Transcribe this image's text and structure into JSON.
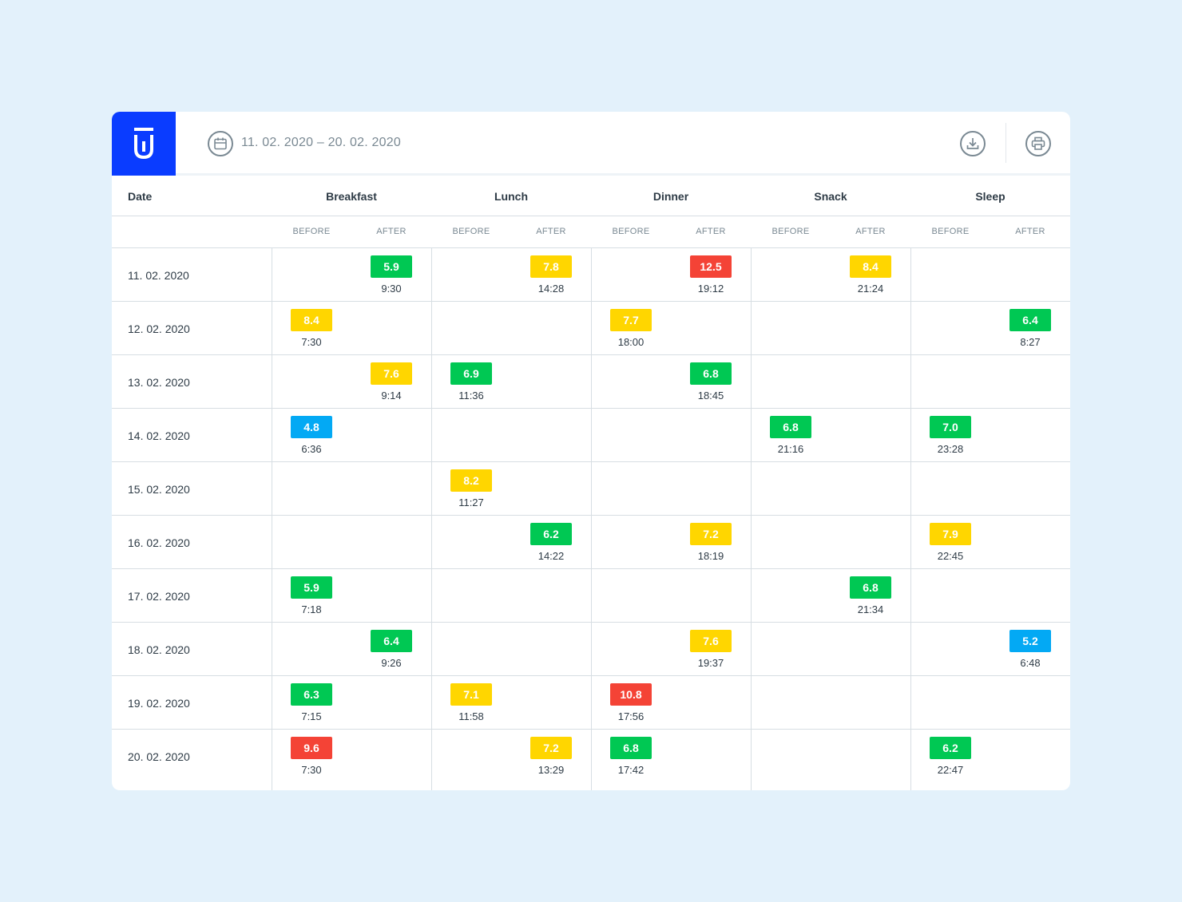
{
  "header": {
    "date_range": "11. 02. 2020 – 20. 02. 2020"
  },
  "colors": {
    "brand": "#0a3cff",
    "green": "#00c853",
    "yellow": "#ffd600",
    "red": "#f44336",
    "blue": "#03a9f4",
    "background": "#e3f1fb"
  },
  "icons": {
    "logo": "brand-logo-icon",
    "calendar": "calendar-icon",
    "download": "download-icon",
    "print": "printer-icon"
  },
  "table": {
    "date_header": "Date",
    "meals": [
      "Breakfast",
      "Lunch",
      "Dinner",
      "Snack",
      "Sleep"
    ],
    "sub_headers": [
      "BEFORE",
      "AFTER"
    ],
    "rows": [
      {
        "date": "11. 02. 2020",
        "entries": [
          {
            "meal": 0,
            "slot": 1,
            "value": "5.9",
            "time": "9:30",
            "level": "green"
          },
          {
            "meal": 1,
            "slot": 1,
            "value": "7.8",
            "time": "14:28",
            "level": "yellow"
          },
          {
            "meal": 2,
            "slot": 1,
            "value": "12.5",
            "time": "19:12",
            "level": "red"
          },
          {
            "meal": 3,
            "slot": 1,
            "value": "8.4",
            "time": "21:24",
            "level": "yellow"
          }
        ]
      },
      {
        "date": "12. 02. 2020",
        "entries": [
          {
            "meal": 0,
            "slot": 0,
            "value": "8.4",
            "time": "7:30",
            "level": "yellow"
          },
          {
            "meal": 2,
            "slot": 0,
            "value": "7.7",
            "time": "18:00",
            "level": "yellow"
          },
          {
            "meal": 4,
            "slot": 1,
            "value": "6.4",
            "time": "8:27",
            "level": "green"
          }
        ]
      },
      {
        "date": "13. 02. 2020",
        "entries": [
          {
            "meal": 0,
            "slot": 1,
            "value": "7.6",
            "time": "9:14",
            "level": "yellow"
          },
          {
            "meal": 1,
            "slot": 0,
            "value": "6.9",
            "time": "11:36",
            "level": "green"
          },
          {
            "meal": 2,
            "slot": 1,
            "value": "6.8",
            "time": "18:45",
            "level": "green"
          }
        ]
      },
      {
        "date": "14. 02. 2020",
        "entries": [
          {
            "meal": 0,
            "slot": 0,
            "value": "4.8",
            "time": "6:36",
            "level": "blue"
          },
          {
            "meal": 3,
            "slot": 0,
            "value": "6.8",
            "time": "21:16",
            "level": "green"
          },
          {
            "meal": 4,
            "slot": 0,
            "value": "7.0",
            "time": "23:28",
            "level": "green"
          }
        ]
      },
      {
        "date": "15. 02. 2020",
        "entries": [
          {
            "meal": 1,
            "slot": 0,
            "value": "8.2",
            "time": "11:27",
            "level": "yellow"
          }
        ]
      },
      {
        "date": "16. 02. 2020",
        "entries": [
          {
            "meal": 1,
            "slot": 1,
            "value": "6.2",
            "time": "14:22",
            "level": "green"
          },
          {
            "meal": 2,
            "slot": 1,
            "value": "7.2",
            "time": "18:19",
            "level": "yellow"
          },
          {
            "meal": 4,
            "slot": 0,
            "value": "7.9",
            "time": "22:45",
            "level": "yellow"
          }
        ]
      },
      {
        "date": "17. 02. 2020",
        "entries": [
          {
            "meal": 0,
            "slot": 0,
            "value": "5.9",
            "time": "7:18",
            "level": "green"
          },
          {
            "meal": 3,
            "slot": 1,
            "value": "6.8",
            "time": "21:34",
            "level": "green"
          }
        ]
      },
      {
        "date": "18. 02. 2020",
        "entries": [
          {
            "meal": 0,
            "slot": 1,
            "value": "6.4",
            "time": "9:26",
            "level": "green"
          },
          {
            "meal": 2,
            "slot": 1,
            "value": "7.6",
            "time": "19:37",
            "level": "yellow"
          },
          {
            "meal": 4,
            "slot": 1,
            "value": "5.2",
            "time": "6:48",
            "level": "blue"
          }
        ]
      },
      {
        "date": "19. 02. 2020",
        "entries": [
          {
            "meal": 0,
            "slot": 0,
            "value": "6.3",
            "time": "7:15",
            "level": "green"
          },
          {
            "meal": 1,
            "slot": 0,
            "value": "7.1",
            "time": "11:58",
            "level": "yellow"
          },
          {
            "meal": 2,
            "slot": 0,
            "value": "10.8",
            "time": "17:56",
            "level": "red"
          }
        ]
      },
      {
        "date": "20. 02. 2020",
        "entries": [
          {
            "meal": 0,
            "slot": 0,
            "value": "9.6",
            "time": "7:30",
            "level": "red"
          },
          {
            "meal": 1,
            "slot": 1,
            "value": "7.2",
            "time": "13:29",
            "level": "yellow"
          },
          {
            "meal": 2,
            "slot": 0,
            "value": "6.8",
            "time": "17:42",
            "level": "green"
          },
          {
            "meal": 4,
            "slot": 0,
            "value": "6.2",
            "time": "22:47",
            "level": "green"
          }
        ]
      }
    ]
  }
}
